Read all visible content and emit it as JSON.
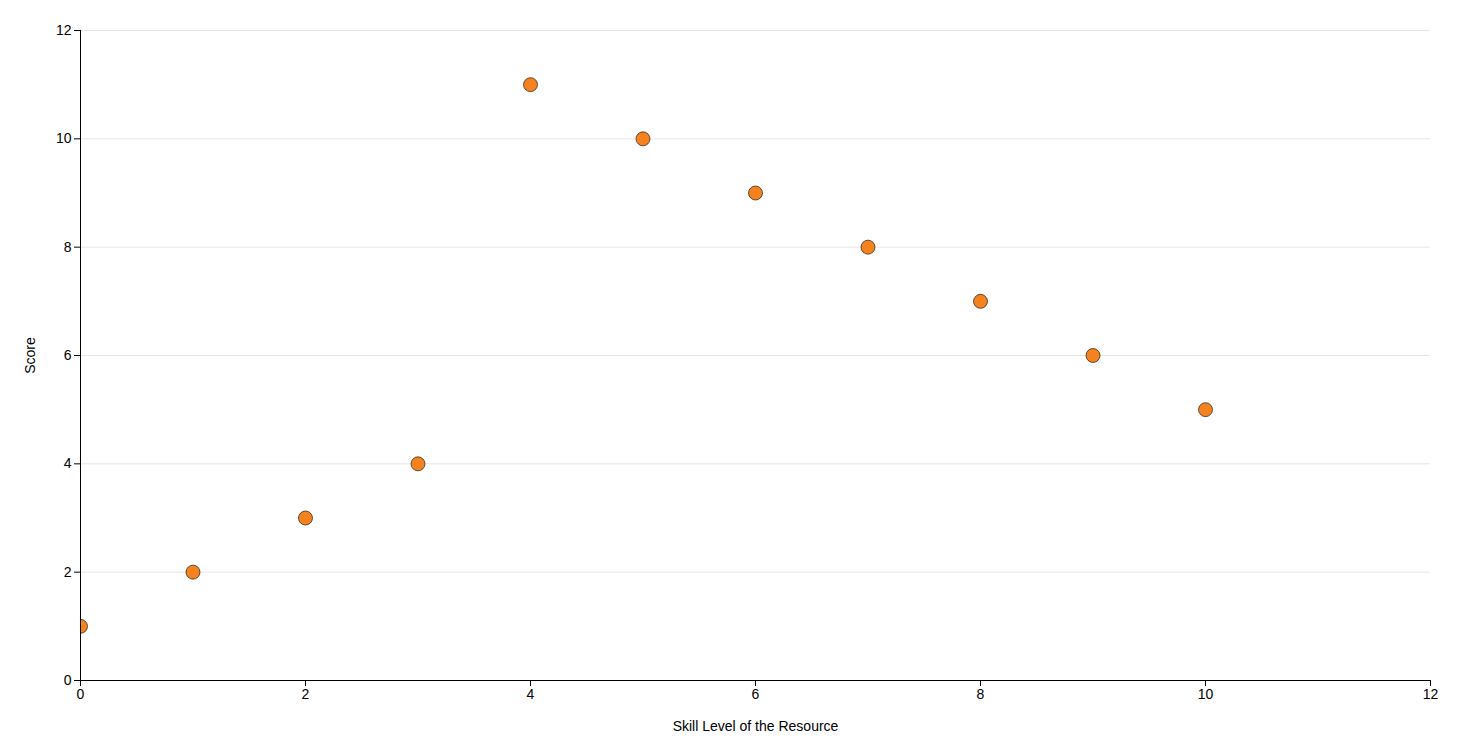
{
  "chart_data": {
    "type": "scatter",
    "x": [
      0,
      1,
      2,
      3,
      4,
      5,
      6,
      7,
      8,
      9,
      10
    ],
    "y": [
      1,
      2,
      3,
      4,
      11,
      10,
      9,
      8,
      7,
      6,
      5
    ],
    "xlabel": "Skill Level of the Resource",
    "ylabel": "Score",
    "xlim": [
      0,
      12
    ],
    "ylim": [
      0,
      12
    ],
    "xticks": [
      0,
      2,
      4,
      6,
      8,
      10,
      12
    ],
    "yticks": [
      0,
      2,
      4,
      6,
      8,
      10,
      12
    ],
    "color": "#F4831F",
    "grid": true
  }
}
